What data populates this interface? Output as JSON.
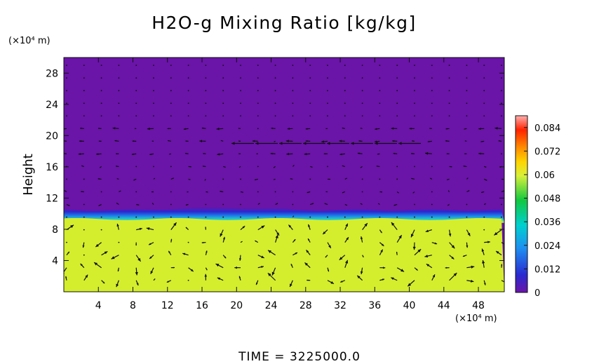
{
  "chart_data": {
    "type": "heatmap",
    "title": "H2O-g Mixing Ratio [kg/kg]",
    "ylabel": "Height",
    "y_unit_label": "(×10⁴ m)",
    "x_unit_label": "(×10⁴ m)",
    "xlim": [
      0,
      51
    ],
    "ylim": [
      0,
      30
    ],
    "x_ticks": [
      4,
      8,
      12,
      16,
      20,
      24,
      28,
      32,
      36,
      40,
      44,
      48
    ],
    "x_tick_labels": [
      "4",
      "8",
      "12",
      "16",
      "20",
      "24",
      "28",
      "32",
      "36",
      "40",
      "44",
      "48"
    ],
    "y_ticks": [
      4,
      8,
      12,
      16,
      20,
      24,
      28
    ],
    "y_tick_labels": [
      "4",
      "8",
      "12",
      "16",
      "20",
      "24",
      "28"
    ],
    "colorbar": {
      "range": [
        0,
        0.09
      ],
      "ticks": [
        0,
        0.012,
        0.024,
        0.036,
        0.048,
        0.06,
        0.072,
        0.084
      ],
      "tick_labels": [
        "0",
        "0.012",
        "0.024",
        "0.036",
        "0.048",
        "0.06",
        "0.072",
        "0.084"
      ],
      "colors": [
        "#6a14a8",
        "#2233d8",
        "#1e90ff",
        "#00d0d0",
        "#10c840",
        "#d8f03a",
        "#ff9a00",
        "#ff2200",
        "#ffa8a8"
      ]
    },
    "fields": [
      {
        "name": "upper",
        "y_range": [
          10.2,
          30
        ],
        "value": 0.0
      },
      {
        "name": "transition",
        "y_range": [
          9.0,
          10.8
        ],
        "value": 0.02
      },
      {
        "name": "lower",
        "y_range": [
          0,
          9.3
        ],
        "value": 0.058
      }
    ],
    "vectors": "wind arrows overlaid on grid",
    "footer": "TIME = 3225000.0"
  },
  "colors": {
    "upper_fill": "#6a14a8",
    "lower_fill": "#d4ee2e",
    "arrow": "#111111"
  }
}
